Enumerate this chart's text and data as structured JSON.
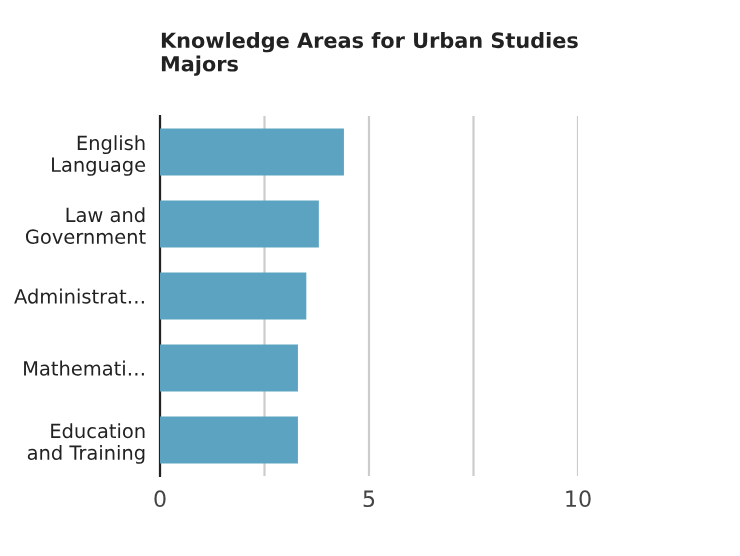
{
  "chart_data": {
    "type": "bar",
    "orientation": "horizontal",
    "title": "Knowledge Areas for Urban Studies\nMajors",
    "categories": [
      "English\nLanguage",
      "Law and\nGovernment",
      "Administrat…",
      "Mathemati…",
      "Education\nand Training"
    ],
    "values": [
      4.4,
      3.8,
      3.5,
      3.3,
      3.3
    ],
    "color": "#5ba3c0",
    "xlim": [
      0,
      10
    ],
    "xticks": [
      0,
      {
        "value": 2.5,
        "label": null
      },
      5,
      {
        "value": 7.5,
        "label": null
      },
      10
    ],
    "grid": "x"
  }
}
